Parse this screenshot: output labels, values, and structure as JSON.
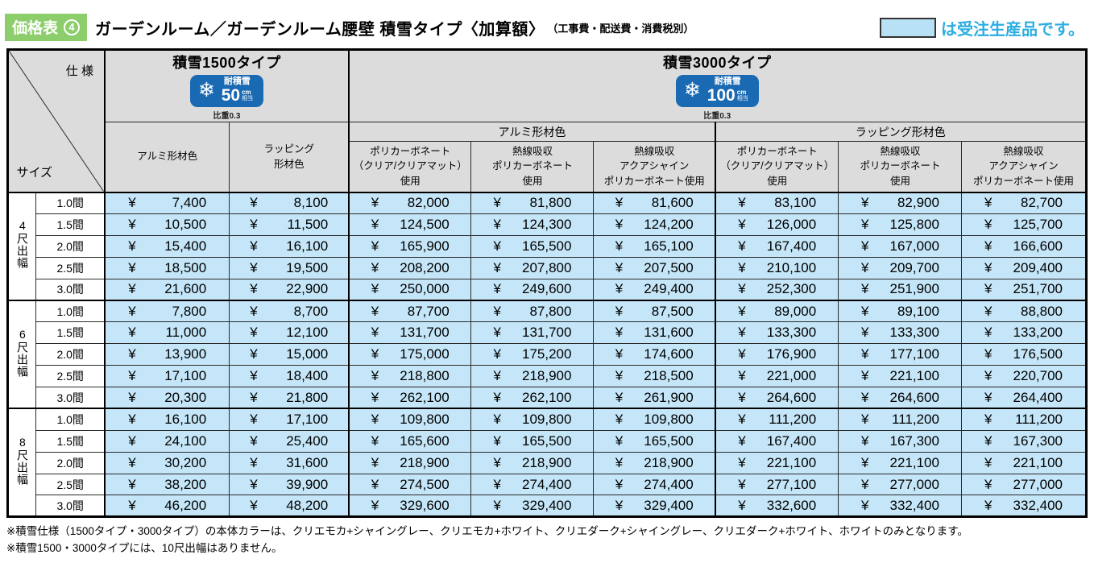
{
  "page": {
    "tag_label": "価格表",
    "tag_number": "4",
    "title": "ガーデンルーム／ガーデンルーム腰壁 積雪タイプ〈加算額〉",
    "title_note": "（工事費・配送費・消費税別）",
    "legend_text": "は受注生産品です。"
  },
  "table": {
    "currency": "¥",
    "corner_top": "仕 様",
    "corner_bottom": "サイズ",
    "groups": [
      {
        "title": "積雪1500タイプ",
        "badge_label": "耐積雪",
        "badge_value": "50",
        "badge_unit": "cm",
        "badge_unit_sub": "相当",
        "badge_note": "比重0.3",
        "columns": [
          "アルミ形材色",
          "ラッピング\n形材色"
        ]
      },
      {
        "title": "積雪3000タイプ",
        "badge_label": "耐積雪",
        "badge_value": "100",
        "badge_unit": "cm",
        "badge_unit_sub": "相当",
        "badge_note": "比重0.3",
        "subgroups": [
          "アルミ形材色",
          "ラッピング形材色"
        ],
        "columns": [
          "ポリカーボネート\n（クリア/クリアマット）\n使用",
          "熱線吸収\nポリカーボネート\n使用",
          "熱線吸収\nアクアシャイン\nポリカーボネート使用"
        ]
      }
    ],
    "row_groups": [
      {
        "label": "4尺出幅",
        "rows": [
          {
            "size": "1.0間",
            "prices": [
              "7,400",
              "8,100",
              "82,000",
              "81,800",
              "81,600",
              "83,100",
              "82,900",
              "82,700"
            ]
          },
          {
            "size": "1.5間",
            "prices": [
              "10,500",
              "11,500",
              "124,500",
              "124,300",
              "124,200",
              "126,000",
              "125,800",
              "125,700"
            ]
          },
          {
            "size": "2.0間",
            "prices": [
              "15,400",
              "16,100",
              "165,900",
              "165,500",
              "165,100",
              "167,400",
              "167,000",
              "166,600"
            ]
          },
          {
            "size": "2.5間",
            "prices": [
              "18,500",
              "19,500",
              "208,200",
              "207,800",
              "207,500",
              "210,100",
              "209,700",
              "209,400"
            ]
          },
          {
            "size": "3.0間",
            "prices": [
              "21,600",
              "22,900",
              "250,000",
              "249,600",
              "249,400",
              "252,300",
              "251,900",
              "251,700"
            ]
          }
        ]
      },
      {
        "label": "6尺出幅",
        "rows": [
          {
            "size": "1.0間",
            "prices": [
              "7,800",
              "8,700",
              "87,700",
              "87,800",
              "87,500",
              "89,000",
              "89,100",
              "88,800"
            ]
          },
          {
            "size": "1.5間",
            "prices": [
              "11,000",
              "12,100",
              "131,700",
              "131,700",
              "131,600",
              "133,300",
              "133,300",
              "133,200"
            ]
          },
          {
            "size": "2.0間",
            "prices": [
              "13,900",
              "15,000",
              "175,000",
              "175,200",
              "174,600",
              "176,900",
              "177,100",
              "176,500"
            ]
          },
          {
            "size": "2.5間",
            "prices": [
              "17,100",
              "18,400",
              "218,800",
              "218,900",
              "218,500",
              "221,000",
              "221,100",
              "220,700"
            ]
          },
          {
            "size": "3.0間",
            "prices": [
              "20,300",
              "21,800",
              "262,100",
              "262,100",
              "261,900",
              "264,600",
              "264,600",
              "264,400"
            ]
          }
        ]
      },
      {
        "label": "8尺出幅",
        "rows": [
          {
            "size": "1.0間",
            "prices": [
              "16,100",
              "17,100",
              "109,800",
              "109,800",
              "109,800",
              "111,200",
              "111,200",
              "111,200"
            ]
          },
          {
            "size": "1.5間",
            "prices": [
              "24,100",
              "25,400",
              "165,600",
              "165,500",
              "165,500",
              "167,400",
              "167,300",
              "167,300"
            ]
          },
          {
            "size": "2.0間",
            "prices": [
              "30,200",
              "31,600",
              "218,900",
              "218,900",
              "218,900",
              "221,100",
              "221,100",
              "221,100"
            ]
          },
          {
            "size": "2.5間",
            "prices": [
              "38,200",
              "39,900",
              "274,500",
              "274,400",
              "274,400",
              "277,100",
              "277,000",
              "277,000"
            ]
          },
          {
            "size": "3.0間",
            "prices": [
              "46,200",
              "48,200",
              "329,600",
              "329,400",
              "329,400",
              "332,600",
              "332,400",
              "332,400"
            ]
          }
        ]
      }
    ]
  },
  "notes": [
    "※積雪仕様（1500タイプ・3000タイプ）の本体カラーは、クリエモカ+シャイングレー、クリエモカ+ホワイト、クリエダーク+シャイングレー、クリエダーク+ホワイト、ホワイトのみとなります。",
    "※積雪1500・3000タイプには、10尺出幅はありません。"
  ],
  "colors": {
    "accent_green": "#8ccd6c",
    "badge_blue": "#1a6ab3",
    "cell_blue": "#c5e6f8",
    "header_gray": "#dcdcdc",
    "legend_text_blue": "#2bade1",
    "legend_box_fill": "#b9e1f6"
  }
}
